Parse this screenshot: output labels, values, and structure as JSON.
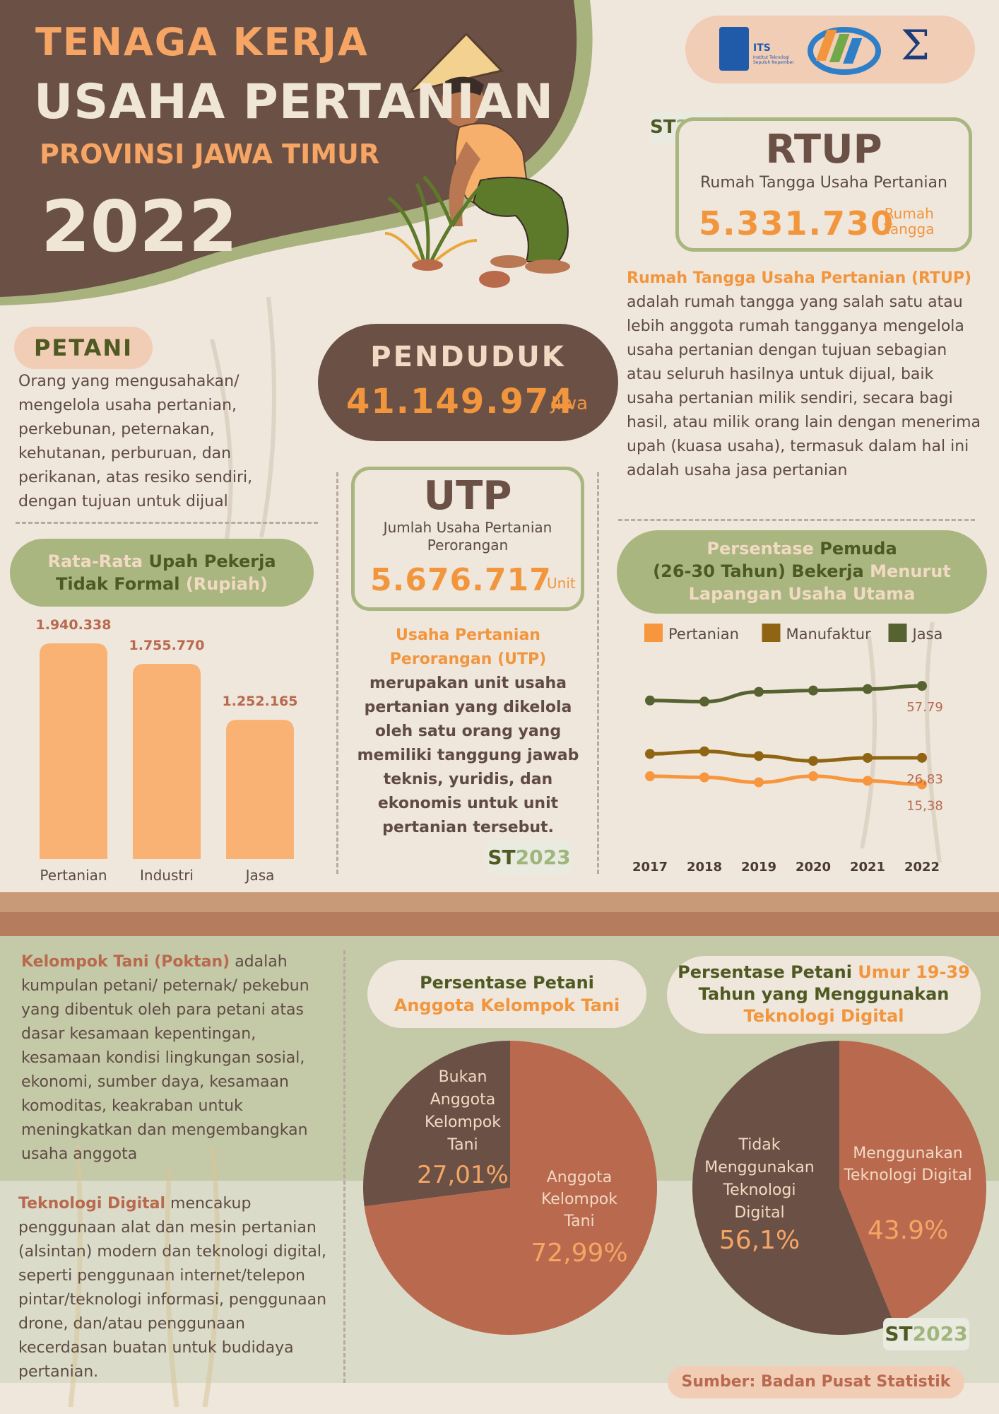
{
  "header": {
    "line1": "TENAGA KERJA",
    "line2": "USAHA PERTANIAN",
    "line3": "PROVINSI JAWA TIMUR",
    "year": "2022"
  },
  "logos": [
    "its-logo",
    "bps-logo",
    "sigma-logo"
  ],
  "logo_text": {
    "its": "ITS",
    "its_sub": "Institut Teknologi Sepuluh Nopember",
    "sigma": "Σ"
  },
  "st_badge": {
    "st": "ST",
    "year": "2023"
  },
  "rtup": {
    "title": "RTUP",
    "subtitle": "Rumah Tangga Usaha Pertanian",
    "value": "5.331.730",
    "unit_line1": "Rumah",
    "unit_line2": "Tangga",
    "desc_highlight": "Rumah Tangga Usaha Pertanian (RTUP)",
    "desc_rest": "adalah rumah tangga yang salah satu atau lebih anggota rumah tangganya mengelola usaha pertanian dengan tujuan sebagian atau seluruh hasilnya untuk dijual, baik usaha pertanian milik sendiri, secara bagi hasil, atau milik orang lain dengan menerima upah (kuasa usaha), termasuk dalam hal ini adalah usaha jasa pertanian"
  },
  "petani": {
    "title": "PETANI",
    "desc": "Orang yang mengusahakan/ mengelola usaha pertanian, perkebunan, peternakan, kehutanan, perburuan, dan perikanan, atas resiko sendiri, dengan tujuan untuk dijual"
  },
  "penduduk": {
    "title": "PENDUDUK",
    "value": "41.149.974",
    "unit": "Jiwa"
  },
  "utp": {
    "title": "UTP",
    "subtitle_line1": "Jumlah Usaha Pertanian",
    "subtitle_line2": "Perorangan",
    "value": "5.676.717",
    "unit": "Unit",
    "desc_highlight_line1": "Usaha Pertanian",
    "desc_highlight_line2": "Perorangan (UTP)",
    "desc_rest": "merupakan unit usaha pertanian yang dikelola oleh satu orang yang memiliki tanggung jawab teknis, yuridis, dan ekonomis untuk unit pertanian tersebut."
  },
  "wage_chart": {
    "title_p1": "Rata-Rata ",
    "title_p2": "Upah Pekerja",
    "title_p3": "Tidak Formal ",
    "title_p4": "(Rupiah)"
  },
  "youth_chart": {
    "title_p1": "Persentase ",
    "title_p2": "Pemuda",
    "title_p3": "(26-30 Tahun) Bekerja ",
    "title_p4": "Menurut",
    "title_p5": "Lapangan Usaha Utama"
  },
  "poktan": {
    "desc_highlight": "Kelompok Tani (Poktan)",
    "desc_rest": " adalah kumpulan petani/ peternak/ pekebun yang dibentuk oleh para petani atas dasar kesamaan kepentingan, kesamaan kondisi lingkungan sosial, ekonomi, sumber daya, kesamaan komoditas, keakraban untuk meningkatkan dan mengembangkan usaha anggota"
  },
  "tekdig": {
    "desc_highlight": "Teknologi Digital",
    "desc_rest": " mencakup penggunaan alat dan mesin pertanian (alsintan) modern dan teknologi digital, seperti penggunaan internet/telepon pintar/teknologi informasi, penggunaan drone, dan/atau penggunaan kecerdasan buatan untuk budidaya pertanian."
  },
  "pie1_title": {
    "p1": "Persentase Petani",
    "p2": "Anggota Kelompok Tani"
  },
  "pie2_title": {
    "p1": "Persentase Petani ",
    "p2": "Umur 19-39",
    "p3": "Tahun yang Menggunakan",
    "p4": "Teknologi Digital"
  },
  "source": "Sumber: Badan Pusat Statistik",
  "colors": {
    "brown_dark": "#6b5045",
    "orange": "#f2963e",
    "peach": "#f9b273",
    "olive": "#556028",
    "sage": "#a9b67f",
    "terracotta": "#b9694e",
    "band_tan": "#c99a78",
    "band_brown": "#b57c5e"
  },
  "chart_data": [
    {
      "type": "bar",
      "title": "Rata-Rata Upah Pekerja Tidak Formal (Rupiah)",
      "categories": [
        "Pertanian",
        "Industri",
        "Jasa"
      ],
      "values": [
        1940338,
        1755770,
        1252165
      ],
      "value_labels": [
        "1.940.338",
        "1.755.770",
        "1.252.165"
      ]
    },
    {
      "type": "line",
      "title": "Persentase Pemuda (26-30 Tahun) Bekerja Menurut Lapangan Usaha Utama",
      "x": [
        "2017",
        "2018",
        "2019",
        "2020",
        "2021",
        "2022"
      ],
      "ylim": [
        0,
        70
      ],
      "legend": "top",
      "series": [
        {
          "name": "Pertanian",
          "color": "#f7963d",
          "values": [
            18.9,
            18.4,
            16.3,
            18.9,
            16.9,
            15.38
          ],
          "end_label": "15,38"
        },
        {
          "name": "Manufaktur",
          "color": "#8f6412",
          "values": [
            28.5,
            29.6,
            27.6,
            25.5,
            26.8,
            26.83
          ],
          "end_label": "26,83"
        },
        {
          "name": "Jasa",
          "color": "#566230",
          "values": [
            51.5,
            51.0,
            55.2,
            55.8,
            56.4,
            57.79
          ],
          "end_label": "57.79"
        }
      ]
    },
    {
      "type": "pie",
      "title": "Persentase Petani Anggota Kelompok Tani",
      "slices": [
        {
          "label": "Bukan Anggota Kelompok Tani",
          "value": 27.01,
          "value_label": "27,01%",
          "color": "#6b5045"
        },
        {
          "label": "Anggota Kelompok Tani",
          "value": 72.99,
          "value_label": "72,99%",
          "color": "#b9694e"
        }
      ]
    },
    {
      "type": "pie",
      "title": "Persentase Petani Umur 19-39 Tahun yang Menggunakan Teknologi Digital",
      "slices": [
        {
          "label": "Menggunakan Teknologi Digital",
          "value": 43.9,
          "value_label": "43.9%",
          "color": "#b9694e"
        },
        {
          "label": "Tidak Menggunakan Teknologi Digital",
          "value": 56.1,
          "value_label": "56,1%",
          "color": "#6b5045"
        }
      ]
    }
  ]
}
